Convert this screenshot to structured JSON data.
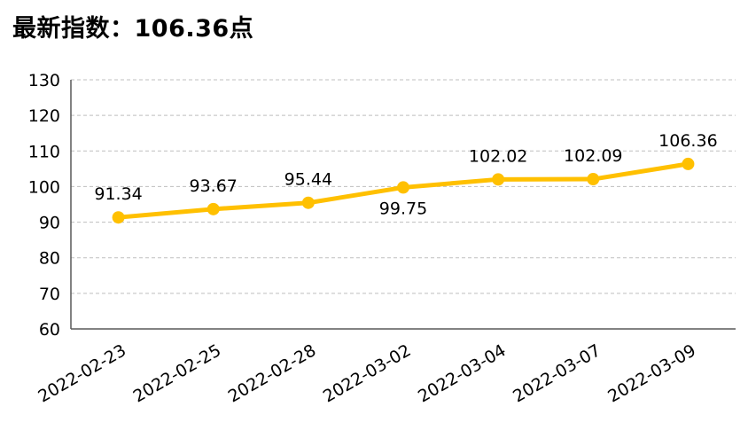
{
  "header": {
    "title_prefix": "最新指数：",
    "title_value": "106.36点"
  },
  "colors": {
    "series": "#FFC000",
    "grid": "#BFBFBF",
    "axis": "#595959"
  },
  "chart_data": {
    "type": "line",
    "title": "最新指数：106.36点",
    "categories": [
      "2022-02-23",
      "2022-02-25",
      "2022-02-28",
      "2022-03-02",
      "2022-03-04",
      "2022-03-07",
      "2022-03-09"
    ],
    "series": [
      {
        "values": [
          91.34,
          93.67,
          95.44,
          99.75,
          102.02,
          102.09,
          106.36
        ]
      }
    ],
    "data_labels": [
      "91.34",
      "93.67",
      "95.44",
      "99.75",
      "102.02",
      "102.09",
      "106.36"
    ],
    "ylim": [
      60,
      130
    ],
    "yticks": [
      60,
      70,
      80,
      90,
      100,
      110,
      120,
      130
    ],
    "grid": true,
    "legend": "none"
  }
}
